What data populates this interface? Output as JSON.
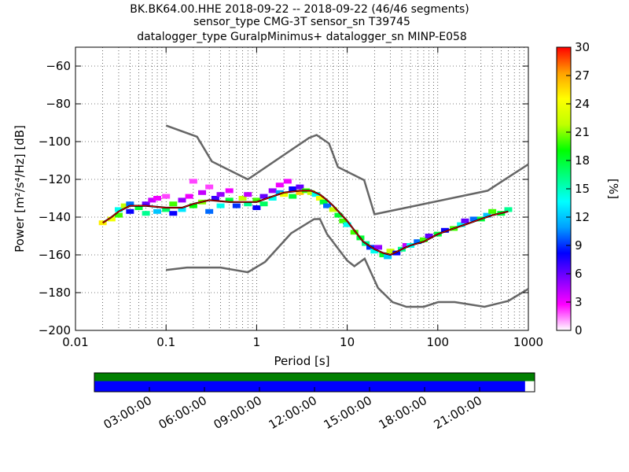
{
  "title": {
    "line1": "BK.BK64.00.HHE   2018-09-22 -- 2018-09-22  (46/46 segments)",
    "line2": "sensor_type CMG-3T sensor_sn T39745",
    "line3": "datalogger_type GuralpMinimus+ datalogger_sn MINP-E058"
  },
  "chart_data": {
    "type": "heatmap",
    "xlabel": "Period [s]",
    "ylabel": "Power [m²/s⁴/Hz] [dB]",
    "x_scale": "log",
    "xlim": [
      0.01,
      1000
    ],
    "ylim": [
      -200,
      -50
    ],
    "x_ticks": [
      {
        "v": 0.01,
        "label": "0.01"
      },
      {
        "v": 0.1,
        "label": "0.1"
      },
      {
        "v": 1,
        "label": "1"
      },
      {
        "v": 10,
        "label": "10"
      },
      {
        "v": 100,
        "label": "100"
      },
      {
        "v": 1000,
        "label": "1000"
      }
    ],
    "y_ticks": [
      {
        "v": -60,
        "label": "−60"
      },
      {
        "v": -80,
        "label": "−80"
      },
      {
        "v": -100,
        "label": "−100"
      },
      {
        "v": -120,
        "label": "−120"
      },
      {
        "v": -140,
        "label": "−140"
      },
      {
        "v": -160,
        "label": "−160"
      },
      {
        "v": -180,
        "label": "−180"
      },
      {
        "v": -200,
        "label": "−200"
      }
    ],
    "grid": true,
    "colorbar": {
      "label": "[%]",
      "range": [
        0,
        30
      ],
      "ticks": [
        "0",
        "3",
        "6",
        "9",
        "12",
        "15",
        "18",
        "21",
        "24",
        "27",
        "30"
      ],
      "colors": [
        "#ffffff",
        "#ff00ff",
        "#8000ff",
        "#0000ff",
        "#00a0ff",
        "#00ffff",
        "#00ff80",
        "#00ff00",
        "#c0ff00",
        "#ffff00",
        "#ffa000",
        "#ff0000"
      ]
    },
    "noise_models": [
      {
        "points": [
          [
            0.1,
            -91.5
          ],
          [
            0.22,
            -97.4
          ],
          [
            0.32,
            -110.5
          ],
          [
            0.8,
            -120
          ],
          [
            3.8,
            -98
          ],
          [
            4.6,
            -96.5
          ],
          [
            6.3,
            -101
          ],
          [
            7.9,
            -113.5
          ],
          [
            15.4,
            -120.4
          ],
          [
            20,
            -138.5
          ],
          [
            354.8,
            -126
          ],
          [
            1000,
            -112
          ]
        ]
      },
      {
        "points": [
          [
            0.1,
            -168
          ],
          [
            0.17,
            -166.7
          ],
          [
            0.4,
            -166.7
          ],
          [
            0.8,
            -169.2
          ],
          [
            1.24,
            -163.7
          ],
          [
            2.4,
            -148.6
          ],
          [
            4.3,
            -141.1
          ],
          [
            5,
            -141
          ],
          [
            6,
            -149
          ],
          [
            10,
            -163
          ],
          [
            12,
            -166
          ],
          [
            15.6,
            -162
          ],
          [
            21.9,
            -177.5
          ],
          [
            31.6,
            -185
          ],
          [
            45,
            -187.5
          ],
          [
            70,
            -187.5
          ],
          [
            101,
            -185
          ],
          [
            154,
            -185
          ],
          [
            328,
            -187.5
          ],
          [
            600,
            -184.4
          ],
          [
            1000,
            -178
          ]
        ]
      }
    ],
    "mean_line": [
      [
        0.02,
        -143
      ],
      [
        0.025,
        -140
      ],
      [
        0.03,
        -137
      ],
      [
        0.04,
        -134
      ],
      [
        0.06,
        -134
      ],
      [
        0.1,
        -135
      ],
      [
        0.15,
        -135
      ],
      [
        0.2,
        -133
      ],
      [
        0.3,
        -131
      ],
      [
        0.5,
        -132
      ],
      [
        0.8,
        -132
      ],
      [
        1,
        -132
      ],
      [
        1.5,
        -129
      ],
      [
        2,
        -127
      ],
      [
        3,
        -126
      ],
      [
        4,
        -126
      ],
      [
        5,
        -128
      ],
      [
        6,
        -131
      ],
      [
        7,
        -134
      ],
      [
        8,
        -137
      ],
      [
        10,
        -142
      ],
      [
        12,
        -147
      ],
      [
        15,
        -153
      ],
      [
        20,
        -157
      ],
      [
        25,
        -159
      ],
      [
        30,
        -160
      ],
      [
        40,
        -157
      ],
      [
        50,
        -155
      ],
      [
        70,
        -153
      ],
      [
        100,
        -149
      ],
      [
        150,
        -146
      ],
      [
        200,
        -144
      ],
      [
        300,
        -141
      ],
      [
        400,
        -139
      ],
      [
        600,
        -137
      ]
    ],
    "density": [
      [
        0.02,
        -143,
        25
      ],
      [
        0.025,
        -141,
        24
      ],
      [
        0.03,
        -139,
        20
      ],
      [
        0.03,
        -136,
        14
      ],
      [
        0.035,
        -134,
        22
      ],
      [
        0.04,
        -133,
        10
      ],
      [
        0.04,
        -137,
        8
      ],
      [
        0.05,
        -135,
        18
      ],
      [
        0.06,
        -133,
        6
      ],
      [
        0.06,
        -138,
        16
      ],
      [
        0.07,
        -131,
        4
      ],
      [
        0.08,
        -137,
        12
      ],
      [
        0.08,
        -130,
        3
      ],
      [
        0.1,
        -129,
        2
      ],
      [
        0.1,
        -136,
        17
      ],
      [
        0.12,
        -133,
        20
      ],
      [
        0.12,
        -138,
        8
      ],
      [
        0.15,
        -131,
        5
      ],
      [
        0.15,
        -136,
        13
      ],
      [
        0.18,
        -129,
        3
      ],
      [
        0.2,
        -134,
        19
      ],
      [
        0.2,
        -121,
        2
      ],
      [
        0.25,
        -127,
        4
      ],
      [
        0.25,
        -132,
        21
      ],
      [
        0.3,
        -137,
        10
      ],
      [
        0.3,
        -124,
        2
      ],
      [
        0.35,
        -130,
        7
      ],
      [
        0.4,
        -134,
        14
      ],
      [
        0.4,
        -128,
        5
      ],
      [
        0.5,
        -131,
        18
      ],
      [
        0.5,
        -126,
        3
      ],
      [
        0.6,
        -134,
        9
      ],
      [
        0.7,
        -130,
        22
      ],
      [
        0.8,
        -133,
        16
      ],
      [
        0.8,
        -128,
        4
      ],
      [
        1,
        -131,
        20
      ],
      [
        1,
        -135,
        8
      ],
      [
        1.2,
        -129,
        6
      ],
      [
        1.2,
        -133,
        17
      ],
      [
        1.5,
        -126,
        5
      ],
      [
        1.5,
        -130,
        14
      ],
      [
        1.8,
        -123,
        3
      ],
      [
        1.8,
        -127,
        11
      ],
      [
        2,
        -128,
        24
      ],
      [
        2.2,
        -121,
        3
      ],
      [
        2.5,
        -125,
        8
      ],
      [
        2.5,
        -129,
        18
      ],
      [
        3,
        -124,
        6
      ],
      [
        3,
        -127,
        26
      ],
      [
        3.5,
        -126,
        20
      ],
      [
        4,
        -127,
        22
      ],
      [
        4.5,
        -128,
        14
      ],
      [
        5,
        -130,
        24
      ],
      [
        5.5,
        -132,
        18
      ],
      [
        6,
        -134,
        10
      ],
      [
        7,
        -136,
        22
      ],
      [
        8,
        -139,
        18
      ],
      [
        9,
        -142,
        20
      ],
      [
        10,
        -144,
        14
      ],
      [
        12,
        -148,
        20
      ],
      [
        14,
        -151,
        18
      ],
      [
        16,
        -154,
        16
      ],
      [
        18,
        -156,
        9
      ],
      [
        20,
        -158,
        14
      ],
      [
        22,
        -156,
        5
      ],
      [
        25,
        -160,
        18
      ],
      [
        28,
        -161,
        12
      ],
      [
        30,
        -158,
        22
      ],
      [
        35,
        -159,
        8
      ],
      [
        40,
        -157,
        16
      ],
      [
        45,
        -155,
        4
      ],
      [
        50,
        -155,
        14
      ],
      [
        60,
        -153,
        10
      ],
      [
        70,
        -152,
        20
      ],
      [
        80,
        -150,
        6
      ],
      [
        100,
        -149,
        18
      ],
      [
        120,
        -147,
        8
      ],
      [
        150,
        -146,
        20
      ],
      [
        180,
        -144,
        14
      ],
      [
        200,
        -142,
        6
      ],
      [
        250,
        -141,
        10
      ],
      [
        300,
        -141,
        18
      ],
      [
        350,
        -139,
        12
      ],
      [
        400,
        -137,
        20
      ],
      [
        500,
        -138,
        18
      ],
      [
        600,
        -136,
        16
      ]
    ],
    "timeline": {
      "tick_labels": [
        "03:00:00",
        "06:00:00",
        "09:00:00",
        "12:00:00",
        "15:00:00",
        "18:00:00",
        "21:00:00"
      ],
      "data_coverage_fraction": 0.979,
      "top_color": "#007f00",
      "bottom_color": "#0000ff"
    }
  }
}
